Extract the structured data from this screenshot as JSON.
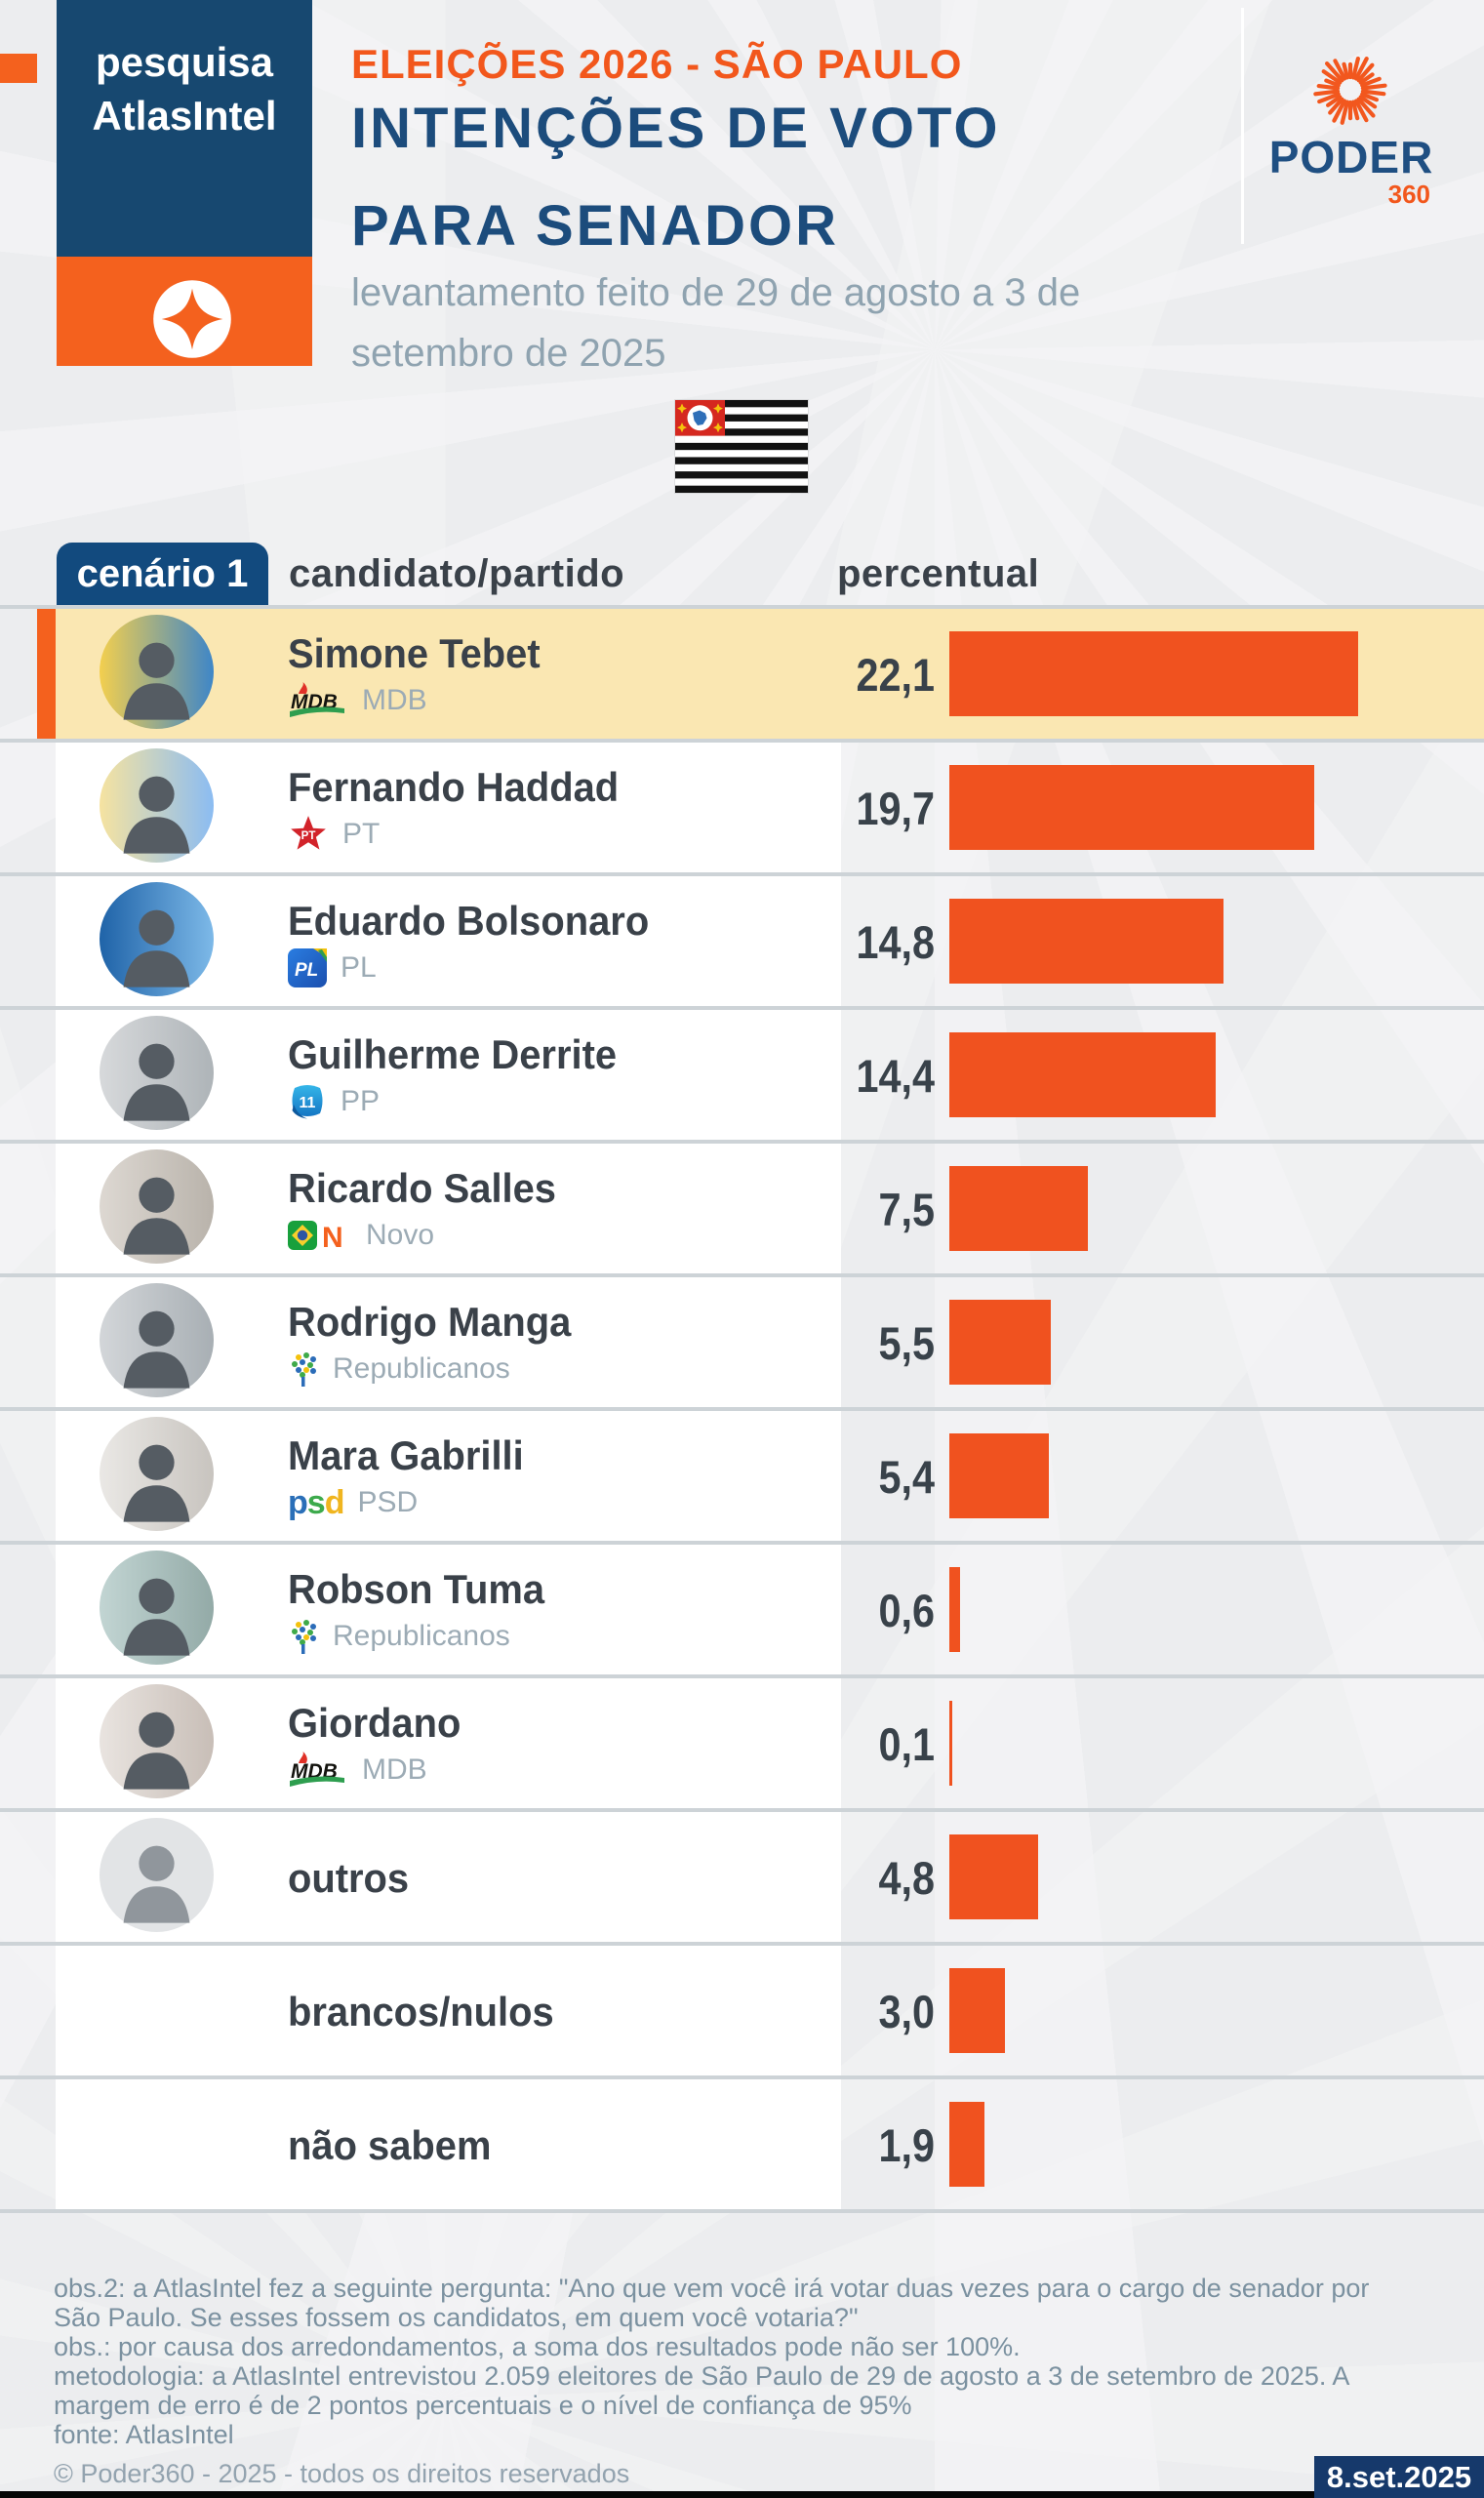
{
  "header": {
    "atlas_badge": {
      "line1": "pesquisa",
      "line2": "AtlasIntel"
    },
    "kicker": "ELEIÇÕES 2026 - SÃO PAULO",
    "title_line1": "INTENÇÕES DE VOTO",
    "title_line2": "PARA SENADOR",
    "subtitle_line1": "levantamento feito de 29 de agosto a 3 de",
    "subtitle_line2": "setembro de 2025",
    "brand_name": "PODER",
    "brand_suffix": "360"
  },
  "icons": {
    "atlas_logo": "diamond-star-icon",
    "brand_logo": "sun-shutter-icon",
    "flag": "sao-paulo-flag",
    "avatar_placeholder": "person-silhouette"
  },
  "colors": {
    "accent_orange": "#f4611e",
    "bar_orange": "#f0521f",
    "navy": "#174870",
    "highlight_yellow": "#fae7b2",
    "page_bg": "#ecedef"
  },
  "table": {
    "scenario_label": "cenário 1",
    "col_candidate": "candidato/partido",
    "col_percent": "percentual",
    "rows": [
      {
        "name": "Simone Tebet",
        "party_label": "MDB",
        "party_logo": "mdb",
        "value": 22.1,
        "value_label": "22,1",
        "highlight": true,
        "avatar": "photo",
        "avatar_colors": [
          "#f3cf4e",
          "#3e86c8"
        ]
      },
      {
        "name": "Fernando Haddad",
        "party_label": "PT",
        "party_logo": "pt",
        "value": 19.7,
        "value_label": "19,7",
        "highlight": false,
        "avatar": "photo",
        "avatar_colors": [
          "#f6e3a0",
          "#8bbcf2"
        ]
      },
      {
        "name": "Eduardo Bolsonaro",
        "party_label": "PL",
        "party_logo": "pl",
        "value": 14.8,
        "value_label": "14,8",
        "highlight": false,
        "avatar": "photo",
        "avatar_colors": [
          "#1f63a8",
          "#7db9e8"
        ]
      },
      {
        "name": "Guilherme Derrite",
        "party_label": "PP",
        "party_logo": "pp",
        "value": 14.4,
        "value_label": "14,4",
        "highlight": false,
        "avatar": "photo",
        "avatar_colors": [
          "#d7d9db",
          "#aeb4b8"
        ]
      },
      {
        "name": "Ricardo Salles",
        "party_label": "Novo",
        "party_logo": "novo",
        "value": 7.5,
        "value_label": "7,5",
        "highlight": false,
        "avatar": "photo",
        "avatar_colors": [
          "#ddd8d2",
          "#b9b3ab"
        ]
      },
      {
        "name": "Rodrigo Manga",
        "party_label": "Republicanos",
        "party_logo": "republicanos",
        "value": 5.5,
        "value_label": "5,5",
        "highlight": false,
        "avatar": "photo",
        "avatar_colors": [
          "#d3d6d9",
          "#a8afb4"
        ]
      },
      {
        "name": "Mara Gabrilli",
        "party_label": "PSD",
        "party_logo": "psd",
        "value": 5.4,
        "value_label": "5,4",
        "highlight": false,
        "avatar": "photo",
        "avatar_colors": [
          "#eae8e5",
          "#c8c4bf"
        ]
      },
      {
        "name": "Robson Tuma",
        "party_label": "Republicanos",
        "party_logo": "republicanos",
        "value": 0.6,
        "value_label": "0,6",
        "highlight": false,
        "avatar": "photo",
        "avatar_colors": [
          "#c2d5d3",
          "#93aaa7"
        ]
      },
      {
        "name": "Giordano",
        "party_label": "MDB",
        "party_logo": "mdb",
        "value": 0.1,
        "value_label": "0,1",
        "highlight": false,
        "avatar": "photo",
        "avatar_colors": [
          "#e9e4e0",
          "#c8beb7"
        ]
      },
      {
        "name": "outros",
        "party_label": null,
        "party_logo": null,
        "value": 4.8,
        "value_label": "4,8",
        "highlight": false,
        "avatar": "placeholder",
        "avatar_colors": [
          "#e2e4e6",
          "#e2e4e6"
        ]
      },
      {
        "name": "brancos/nulos",
        "party_label": null,
        "party_logo": null,
        "value": 3.0,
        "value_label": "3,0",
        "highlight": false,
        "avatar": "none",
        "avatar_colors": null
      },
      {
        "name": "não sabem",
        "party_label": null,
        "party_logo": null,
        "value": 1.9,
        "value_label": "1,9",
        "highlight": false,
        "avatar": "none",
        "avatar_colors": null
      }
    ]
  },
  "footnotes": [
    "obs.2: a AtlasIntel fez a seguinte pergunta: \"Ano que vem você irá votar duas vezes para o cargo de senador por",
    "São Paulo. Se esses fossem os candidatos, em quem você votaria?\"",
    "obs.: por causa dos arredondamentos, a soma dos resultados pode não ser 100%.",
    "metodologia: a AtlasIntel entrevistou 2.059 eleitores de São Paulo de 29 de agosto a 3 de setembro de 2025. A",
    "margem de erro é de 2 pontos percentuais e o nível de confiança de 95%",
    "fonte: AtlasIntel"
  ],
  "copyright": "© Poder360 - 2025 - todos os direitos reservados",
  "date_badge": "8.set.2025",
  "chart_data": {
    "type": "bar",
    "orientation": "horizontal",
    "title": "INTENÇÕES DE VOTO PARA SENADOR",
    "subtitle": "ELEIÇÕES 2026 - SÃO PAULO — levantamento feito de 29 de agosto a 3 de setembro de 2025",
    "scenario": "cenário 1",
    "categories": [
      "Simone Tebet (MDB)",
      "Fernando Haddad (PT)",
      "Eduardo Bolsonaro (PL)",
      "Guilherme Derrite (PP)",
      "Ricardo Salles (Novo)",
      "Rodrigo Manga (Republicanos)",
      "Mara Gabrilli (PSD)",
      "Robson Tuma (Republicanos)",
      "Giordano (MDB)",
      "outros",
      "brancos/nulos",
      "não sabem"
    ],
    "values": [
      22.1,
      19.7,
      14.8,
      14.4,
      7.5,
      5.5,
      5.4,
      0.6,
      0.1,
      4.8,
      3.0,
      1.9
    ],
    "unit": "%",
    "xlim": [
      0,
      25
    ],
    "bar_color": "#f0521f",
    "highlight_index": 0,
    "source": "AtlasIntel",
    "sample": "2.059 eleitores",
    "margin_of_error": "2 pontos percentuais",
    "confidence": "95%"
  }
}
